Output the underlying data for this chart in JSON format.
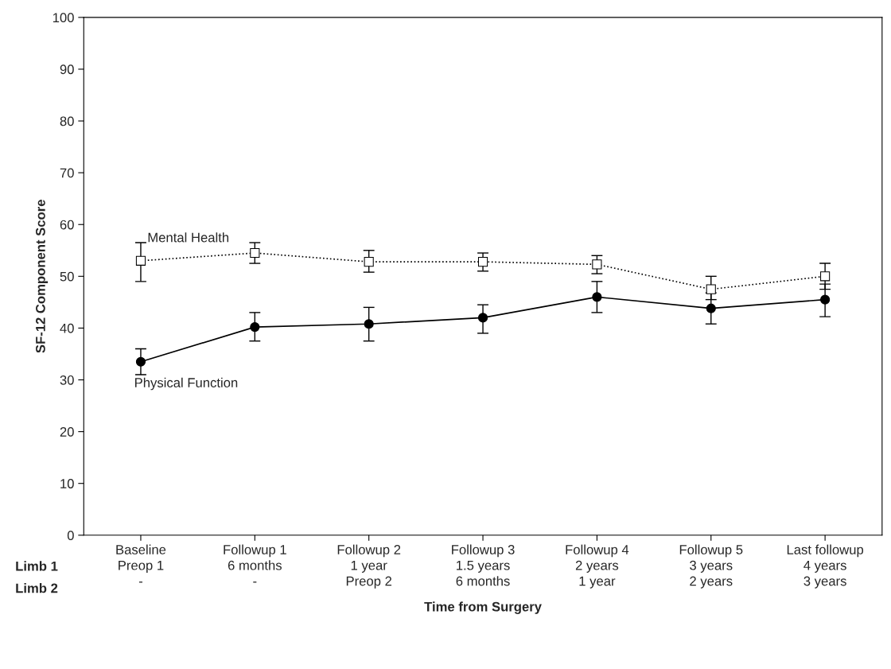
{
  "chart_data": {
    "type": "line",
    "xlabel": "Time from Surgery",
    "ylabel": "SF-12 Component Score",
    "categories": [
      "Baseline\nPreop 1\n-",
      "Followup 1\n6 months\n-",
      "Followup 2\n1 year\nPreop 2",
      "Followup 3\n1.5 years\n6 months",
      "Followup 4\n2 years\n1 year",
      "Followup 5\n3 years\n2 years",
      "Last followup\n4 years\n3 years"
    ],
    "annotations": [
      "Limb 1",
      "Limb 2"
    ],
    "series": [
      {
        "name": "Mental Health",
        "color": "#000000",
        "marker": "square",
        "line_style": "dotted",
        "values": [
          53,
          54.5,
          52.8,
          52.8,
          52.3,
          47.5,
          50
        ],
        "errors": [
          [
            49,
            56.5
          ],
          [
            52.5,
            56.5
          ],
          [
            50.8,
            55
          ],
          [
            51,
            54.5
          ],
          [
            50.5,
            54
          ],
          [
            45.5,
            50
          ],
          [
            47.5,
            52.5
          ]
        ]
      },
      {
        "name": "Physical Function",
        "color": "#000000",
        "marker": "circle",
        "line_style": "solid",
        "values": [
          33.5,
          40.2,
          40.8,
          42,
          46,
          43.8,
          45.5
        ],
        "errors": [
          [
            31,
            36
          ],
          [
            37.5,
            43
          ],
          [
            37.5,
            44
          ],
          [
            39,
            44.5
          ],
          [
            43,
            49
          ],
          [
            40.8,
            46.8
          ],
          [
            42.2,
            48.5
          ]
        ]
      }
    ],
    "ylim": [
      0,
      100
    ],
    "yticks": [
      0,
      10,
      20,
      30,
      40,
      50,
      60,
      70,
      80,
      90,
      100
    ],
    "grid": false,
    "legend": false
  }
}
